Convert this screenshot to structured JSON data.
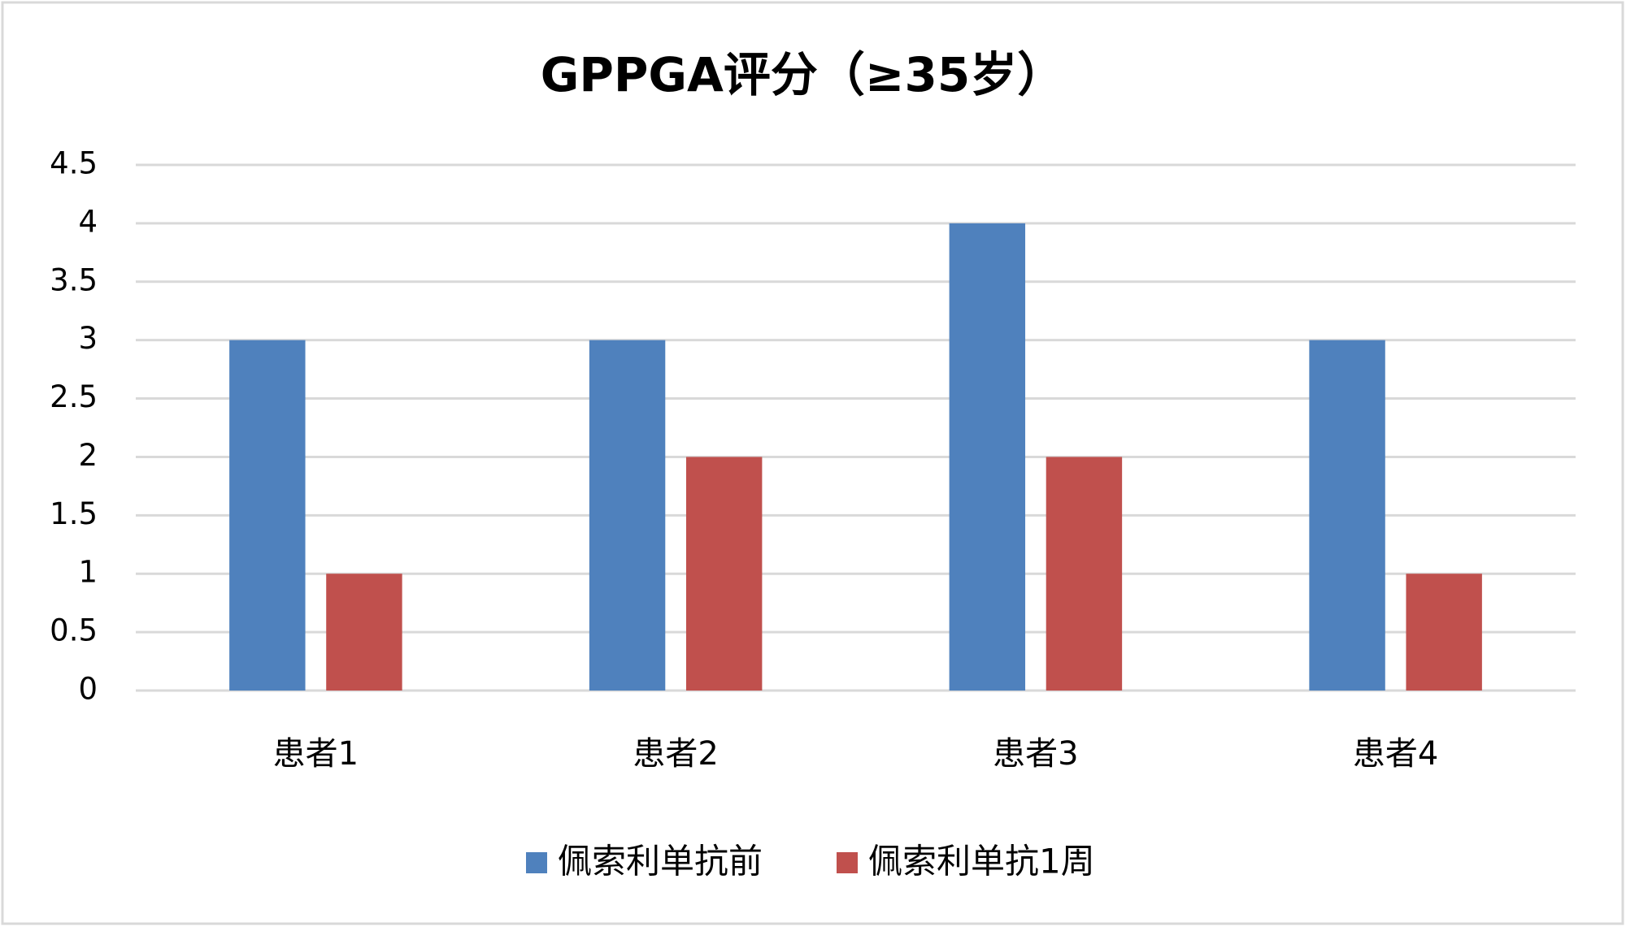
{
  "chart_data": {
    "type": "bar",
    "title": "GPPGA评分（≥35岁）",
    "categories": [
      "患者1",
      "患者2",
      "患者3",
      "患者4"
    ],
    "series": [
      {
        "name": "佩索利单抗前",
        "color": "#4f81bd",
        "values": [
          3,
          3,
          4,
          3
        ]
      },
      {
        "name": "佩索利单抗1周",
        "color": "#c0504d",
        "values": [
          1,
          2,
          2,
          1
        ]
      }
    ],
    "ylim": [
      0,
      4.5
    ],
    "yticks": [
      0,
      0.5,
      1,
      1.5,
      2,
      2.5,
      3,
      3.5,
      4,
      4.5
    ],
    "grid": true,
    "legend": "bottom"
  }
}
